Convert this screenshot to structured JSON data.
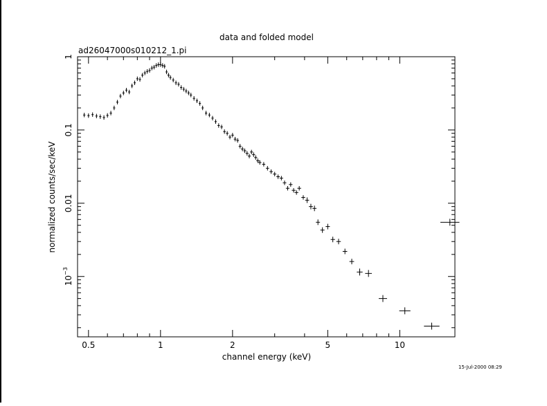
{
  "chart_data": {
    "type": "scatter",
    "title": "data and folded model",
    "subtitle": "ad26047000s010212_1.pi",
    "xlabel": "channel energy (keV)",
    "ylabel": "normalized counts/sec/keV",
    "timestamp": "15-Jul-2000 08:29",
    "xscale": "log",
    "yscale": "log",
    "xlim": [
      0.45,
      17.0
    ],
    "ylim": [
      0.00015,
      1.0
    ],
    "x_ticks": [
      "0.5",
      "1",
      "2",
      "5",
      "10"
    ],
    "y_ticks": [
      "1",
      "0.1",
      "0.01",
      "10^-3"
    ],
    "grid": false,
    "series": [
      {
        "values": [
          {
            "x": 0.48,
            "y": 0.16
          },
          {
            "x": 0.5,
            "y": 0.157
          },
          {
            "x": 0.52,
            "y": 0.162
          },
          {
            "x": 0.54,
            "y": 0.155
          },
          {
            "x": 0.56,
            "y": 0.152
          },
          {
            "x": 0.58,
            "y": 0.148
          },
          {
            "x": 0.6,
            "y": 0.158
          },
          {
            "x": 0.62,
            "y": 0.17
          },
          {
            "x": 0.64,
            "y": 0.2
          },
          {
            "x": 0.66,
            "y": 0.24
          },
          {
            "x": 0.68,
            "y": 0.29
          },
          {
            "x": 0.7,
            "y": 0.32
          },
          {
            "x": 0.72,
            "y": 0.35
          },
          {
            "x": 0.74,
            "y": 0.33
          },
          {
            "x": 0.76,
            "y": 0.4
          },
          {
            "x": 0.78,
            "y": 0.44
          },
          {
            "x": 0.8,
            "y": 0.5
          },
          {
            "x": 0.82,
            "y": 0.49
          },
          {
            "x": 0.84,
            "y": 0.56
          },
          {
            "x": 0.86,
            "y": 0.6
          },
          {
            "x": 0.88,
            "y": 0.63
          },
          {
            "x": 0.9,
            "y": 0.65
          },
          {
            "x": 0.92,
            "y": 0.7
          },
          {
            "x": 0.94,
            "y": 0.72
          },
          {
            "x": 0.96,
            "y": 0.76
          },
          {
            "x": 0.98,
            "y": 0.78
          },
          {
            "x": 1.0,
            "y": 0.78
          },
          {
            "x": 1.02,
            "y": 0.76
          },
          {
            "x": 1.04,
            "y": 0.74
          },
          {
            "x": 1.06,
            "y": 0.62
          },
          {
            "x": 1.08,
            "y": 0.56
          },
          {
            "x": 1.1,
            "y": 0.52
          },
          {
            "x": 1.13,
            "y": 0.48
          },
          {
            "x": 1.16,
            "y": 0.44
          },
          {
            "x": 1.19,
            "y": 0.42
          },
          {
            "x": 1.22,
            "y": 0.38
          },
          {
            "x": 1.25,
            "y": 0.36
          },
          {
            "x": 1.28,
            "y": 0.34
          },
          {
            "x": 1.31,
            "y": 0.32
          },
          {
            "x": 1.34,
            "y": 0.3
          },
          {
            "x": 1.38,
            "y": 0.27
          },
          {
            "x": 1.42,
            "y": 0.25
          },
          {
            "x": 1.46,
            "y": 0.23
          },
          {
            "x": 1.5,
            "y": 0.2
          },
          {
            "x": 1.55,
            "y": 0.17
          },
          {
            "x": 1.6,
            "y": 0.16
          },
          {
            "x": 1.65,
            "y": 0.145
          },
          {
            "x": 1.7,
            "y": 0.13
          },
          {
            "x": 1.75,
            "y": 0.115
          },
          {
            "x": 1.8,
            "y": 0.11
          },
          {
            "x": 1.85,
            "y": 0.095
          },
          {
            "x": 1.9,
            "y": 0.09
          },
          {
            "x": 1.95,
            "y": 0.08
          },
          {
            "x": 2.0,
            "y": 0.085
          },
          {
            "x": 2.05,
            "y": 0.075
          },
          {
            "x": 2.1,
            "y": 0.072
          },
          {
            "x": 2.15,
            "y": 0.06
          },
          {
            "x": 2.2,
            "y": 0.055
          },
          {
            "x": 2.25,
            "y": 0.052
          },
          {
            "x": 2.3,
            "y": 0.048
          },
          {
            "x": 2.35,
            "y": 0.044
          },
          {
            "x": 2.4,
            "y": 0.05
          },
          {
            "x": 2.45,
            "y": 0.046
          },
          {
            "x": 2.5,
            "y": 0.042
          },
          {
            "x": 2.55,
            "y": 0.038
          },
          {
            "x": 2.6,
            "y": 0.036
          },
          {
            "x": 2.7,
            "y": 0.034
          },
          {
            "x": 2.8,
            "y": 0.03
          },
          {
            "x": 2.9,
            "y": 0.027
          },
          {
            "x": 3.0,
            "y": 0.025
          },
          {
            "x": 3.1,
            "y": 0.023
          },
          {
            "x": 3.2,
            "y": 0.022
          },
          {
            "x": 3.3,
            "y": 0.019
          },
          {
            "x": 3.4,
            "y": 0.016
          },
          {
            "x": 3.5,
            "y": 0.018
          },
          {
            "x": 3.6,
            "y": 0.015
          },
          {
            "x": 3.7,
            "y": 0.014
          },
          {
            "x": 3.8,
            "y": 0.016
          },
          {
            "x": 3.95,
            "y": 0.012
          },
          {
            "x": 4.1,
            "y": 0.011
          },
          {
            "x": 4.25,
            "y": 0.009
          },
          {
            "x": 4.4,
            "y": 0.0085
          },
          {
            "x": 4.55,
            "y": 0.0055
          },
          {
            "x": 4.75,
            "y": 0.0043
          },
          {
            "x": 5.0,
            "y": 0.0048
          },
          {
            "x": 5.25,
            "y": 0.0032
          },
          {
            "x": 5.55,
            "y": 0.003
          },
          {
            "x": 5.9,
            "y": 0.0022
          },
          {
            "x": 6.3,
            "y": 0.0016
          },
          {
            "x": 6.8,
            "y": 0.00115
          },
          {
            "x": 7.4,
            "y": 0.0011
          },
          {
            "x": 8.5,
            "y": 0.0005
          },
          {
            "x": 10.5,
            "y": 0.00034
          },
          {
            "x": 13.6,
            "y": 0.00021
          },
          {
            "x": 16.2,
            "y": 0.0055
          }
        ]
      }
    ]
  }
}
